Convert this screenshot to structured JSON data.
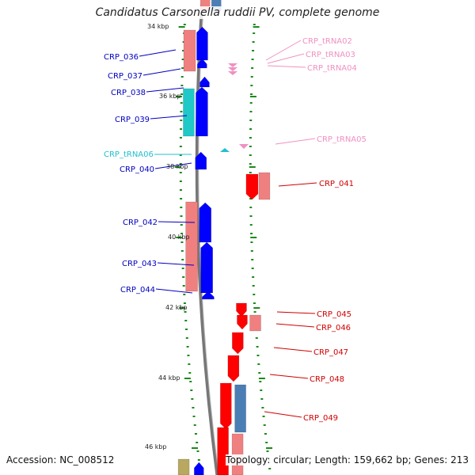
{
  "title": "Candidatus Carsonella ruddii PV, complete genome",
  "footer": {
    "accession": "Accession: NC_008512",
    "summary": "Topology: circular; Length: 159,662 bp; Genes: 213"
  },
  "colors": {
    "cds_fwd": "#ff0000",
    "cds_fwd_light": "#f08080",
    "cds_rev": "#0000ff",
    "trna": "#f090c0",
    "trna_label": "#f090c0",
    "trna06": "#20c0d0",
    "cyan_block": "#20c8c8",
    "steel": "#4a7eb4",
    "olive": "#b8a860",
    "ticks": "#1a8a1a",
    "backbone": "#777777",
    "label_fwd": "#d00000",
    "label_rev": "#0000c0"
  },
  "kbp_labels": [
    "34 kbp",
    "36 kbp",
    "38 kbp",
    "40 kbp",
    "42 kbp",
    "44 kbp",
    "46 kbp"
  ],
  "left_labels": [
    "CRP_036",
    "CRP_037",
    "CRP_038",
    "CRP_039",
    "CRP_tRNA06",
    "CRP_040",
    "CRP_042",
    "CRP_043",
    "CRP_044"
  ],
  "right_labels": [
    "CRP_tRNA02",
    "CRP_tRNA03",
    "CRP_tRNA04",
    "CRP_tRNA05",
    "CRP_041",
    "CRP_045",
    "CRP_046",
    "CRP_047",
    "CRP_048",
    "CRP_049"
  ]
}
